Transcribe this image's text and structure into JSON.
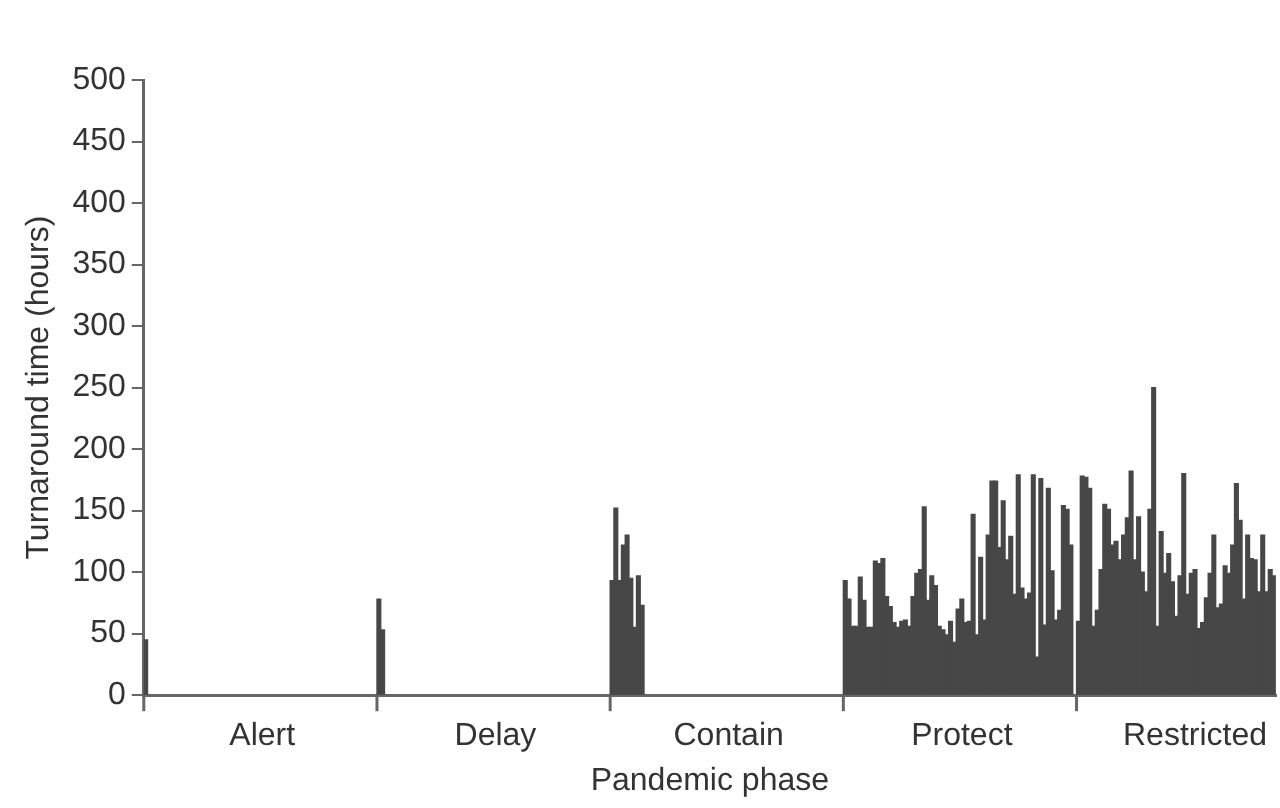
{
  "chart_data": {
    "type": "bar",
    "xlabel": "Pandemic phase",
    "ylabel": "Turnaround time (hours)",
    "categories": [
      null,
      null,
      null,
      null,
      null,
      null,
      null,
      null,
      null,
      null,
      null,
      null,
      null,
      null,
      null,
      null,
      null,
      null,
      null,
      null,
      null,
      null,
      null,
      null,
      null,
      null,
      null,
      null,
      null,
      null,
      null,
      "Alert",
      null,
      null,
      null,
      null,
      null,
      null,
      null,
      null,
      null,
      null,
      null,
      null,
      null,
      null,
      null,
      null,
      null,
      null,
      null,
      null,
      null,
      null,
      null,
      null,
      null,
      null,
      null,
      null,
      null,
      null,
      null,
      null,
      null,
      null,
      null,
      null,
      null,
      null,
      null,
      null,
      null,
      null,
      null,
      null,
      null,
      null,
      null,
      null,
      null,
      null,
      null,
      null,
      null,
      null,
      null,
      null,
      null,
      null,
      null,
      null,
      null,
      "Delay",
      null,
      null,
      null,
      null,
      null,
      null,
      null,
      null,
      null,
      null,
      null,
      null,
      null,
      null,
      null,
      null,
      null,
      null,
      null,
      null,
      null,
      null,
      null,
      null,
      null,
      null,
      null,
      null,
      null,
      null,
      null,
      null,
      null,
      null,
      null,
      null,
      null,
      null,
      null,
      null,
      null,
      null,
      null,
      null,
      null,
      null,
      null,
      null,
      null,
      null,
      null,
      null,
      null,
      null,
      null,
      null,
      null,
      null,
      null,
      null,
      null,
      "Contain",
      null,
      null,
      null,
      null,
      null,
      null,
      null,
      null,
      null,
      null,
      null,
      null,
      null,
      null,
      null,
      null,
      null,
      null,
      null,
      null,
      null,
      null,
      null,
      null,
      null,
      null,
      null,
      null,
      null,
      null,
      null,
      null,
      null,
      null,
      null,
      null,
      null,
      null,
      null,
      null,
      null,
      null,
      null,
      null,
      null,
      null,
      null,
      null,
      null,
      null,
      null,
      null,
      null,
      null,
      null,
      null,
      null,
      null,
      null,
      null,
      null,
      "Protect",
      null,
      null,
      null,
      null,
      null,
      null,
      null,
      null,
      null,
      null,
      null,
      null,
      null,
      null,
      null,
      null,
      null,
      null,
      null,
      null,
      null,
      null,
      null,
      null,
      null,
      null,
      null,
      null,
      null,
      null,
      null,
      null,
      null,
      null,
      null,
      null,
      null,
      null,
      null,
      null,
      null,
      null,
      null,
      null,
      null,
      null,
      null,
      null,
      null,
      null,
      null,
      null,
      null,
      null,
      null,
      null,
      null,
      null,
      null,
      null,
      null,
      "Restricted",
      null,
      null,
      null,
      null,
      null,
      null,
      null,
      null,
      null,
      null,
      null,
      null,
      null,
      null,
      null,
      null,
      null,
      null,
      null,
      null,
      null
    ],
    "values": [
      45,
      null,
      null,
      null,
      null,
      null,
      null,
      null,
      null,
      null,
      null,
      null,
      null,
      null,
      null,
      null,
      null,
      null,
      null,
      null,
      null,
      null,
      null,
      null,
      null,
      null,
      null,
      null,
      null,
      null,
      null,
      null,
      null,
      null,
      null,
      null,
      null,
      null,
      null,
      null,
      null,
      null,
      null,
      null,
      null,
      null,
      null,
      null,
      null,
      null,
      null,
      null,
      null,
      null,
      null,
      null,
      null,
      null,
      null,
      null,
      null,
      null,
      78,
      53,
      null,
      null,
      null,
      null,
      null,
      null,
      null,
      null,
      null,
      null,
      null,
      null,
      null,
      null,
      null,
      null,
      null,
      null,
      null,
      null,
      null,
      null,
      null,
      null,
      null,
      null,
      null,
      null,
      null,
      null,
      null,
      null,
      null,
      null,
      null,
      null,
      null,
      null,
      null,
      null,
      null,
      null,
      null,
      null,
      null,
      null,
      null,
      null,
      null,
      null,
      null,
      null,
      null,
      null,
      null,
      null,
      null,
      null,
      null,
      null,
      93,
      152,
      93,
      122,
      130,
      95,
      55,
      97,
      73,
      null,
      null,
      null,
      null,
      null,
      null,
      null,
      null,
      null,
      null,
      null,
      null,
      null,
      null,
      null,
      null,
      null,
      null,
      null,
      null,
      null,
      null,
      null,
      null,
      null,
      null,
      null,
      null,
      null,
      null,
      null,
      null,
      null,
      null,
      null,
      null,
      null,
      null,
      null,
      null,
      null,
      null,
      null,
      null,
      null,
      null,
      null,
      null,
      null,
      null,
      null,
      null,
      null,
      93,
      78,
      56,
      56,
      96,
      77,
      55,
      55,
      109,
      107,
      111,
      80,
      72,
      59,
      55,
      60,
      61,
      56,
      80,
      99,
      102,
      153,
      77,
      97,
      89,
      56,
      53,
      49,
      60,
      43,
      70,
      78,
      59,
      60,
      147,
      49,
      112,
      61,
      130,
      174,
      174,
      120,
      158,
      110,
      129,
      82,
      179,
      87,
      78,
      83,
      179,
      31,
      176,
      57,
      168,
      101,
      61,
      69,
      154,
      151,
      122,
      null,
      60,
      178,
      177,
      168,
      56,
      69,
      102,
      155,
      151,
      122,
      125,
      110,
      130,
      144,
      182,
      110,
      145,
      100,
      84,
      151,
      250,
      56,
      133,
      99,
      115,
      92,
      64,
      97,
      180,
      82,
      99,
      102,
      54,
      59,
      79,
      99,
      130,
      71,
      74,
      105,
      99,
      122,
      172,
      142,
      78,
      130,
      111,
      110,
      84,
      130,
      84,
      102,
      97
    ],
    "color": "#474747",
    "ylim": [
      0,
      500
    ],
    "yticks": [
      0,
      50,
      100,
      150,
      200,
      250,
      300,
      350,
      400,
      450,
      500
    ]
  }
}
